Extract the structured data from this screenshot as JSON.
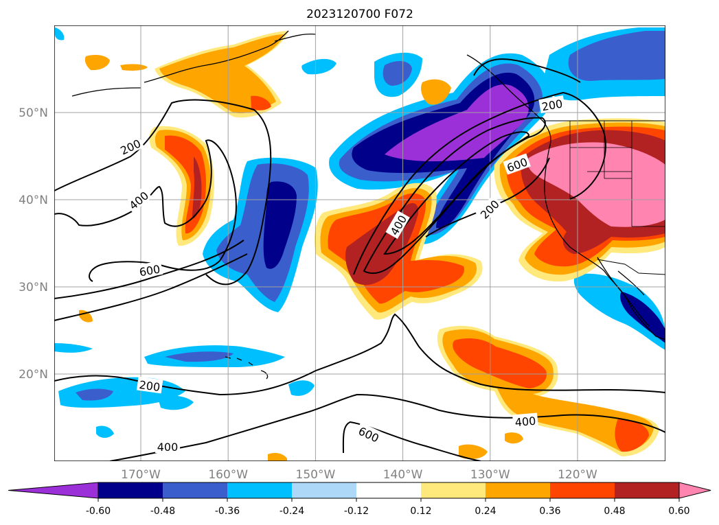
{
  "title": "2023120700 F072",
  "map": {
    "lat_ticks": [
      {
        "label": "50°N",
        "value": 50
      },
      {
        "label": "40°N",
        "value": 40
      },
      {
        "label": "30°N",
        "value": 30
      },
      {
        "label": "20°N",
        "value": 20
      }
    ],
    "lon_ticks": [
      {
        "label": "170°W",
        "value": -170
      },
      {
        "label": "160°W",
        "value": -160
      },
      {
        "label": "150°W",
        "value": -150
      },
      {
        "label": "140°W",
        "value": -140
      },
      {
        "label": "130°W",
        "value": -130
      },
      {
        "label": "120°W",
        "value": -120
      }
    ],
    "gridlines": true,
    "contour_labels": [
      "200",
      "400",
      "600",
      "200",
      "400",
      "600",
      "200",
      "400",
      "600",
      "200",
      "400"
    ]
  },
  "colorbar": {
    "labels": [
      "-0.60",
      "-0.48",
      "-0.36",
      "-0.24",
      "-0.12",
      "0.12",
      "0.24",
      "0.36",
      "0.48",
      "0.60"
    ],
    "colors": [
      "#9b30d9",
      "#00008b",
      "#3a5fcd",
      "#00bfff",
      "#add8f7",
      "#ffffff",
      "#ffe87c",
      "#ffa500",
      "#ff4500",
      "#b22222",
      "#ff85b0"
    ],
    "extend": "both"
  },
  "colors": {
    "purple": "#9b30d9",
    "navy": "#00008b",
    "royal": "#3a5fcd",
    "sky": "#00bfff",
    "light_blue": "#add8f7",
    "yellow": "#ffe87c",
    "orange": "#ffa500",
    "red_orange": "#ff4500",
    "firebrick": "#b22222",
    "pink": "#ff85b0"
  }
}
